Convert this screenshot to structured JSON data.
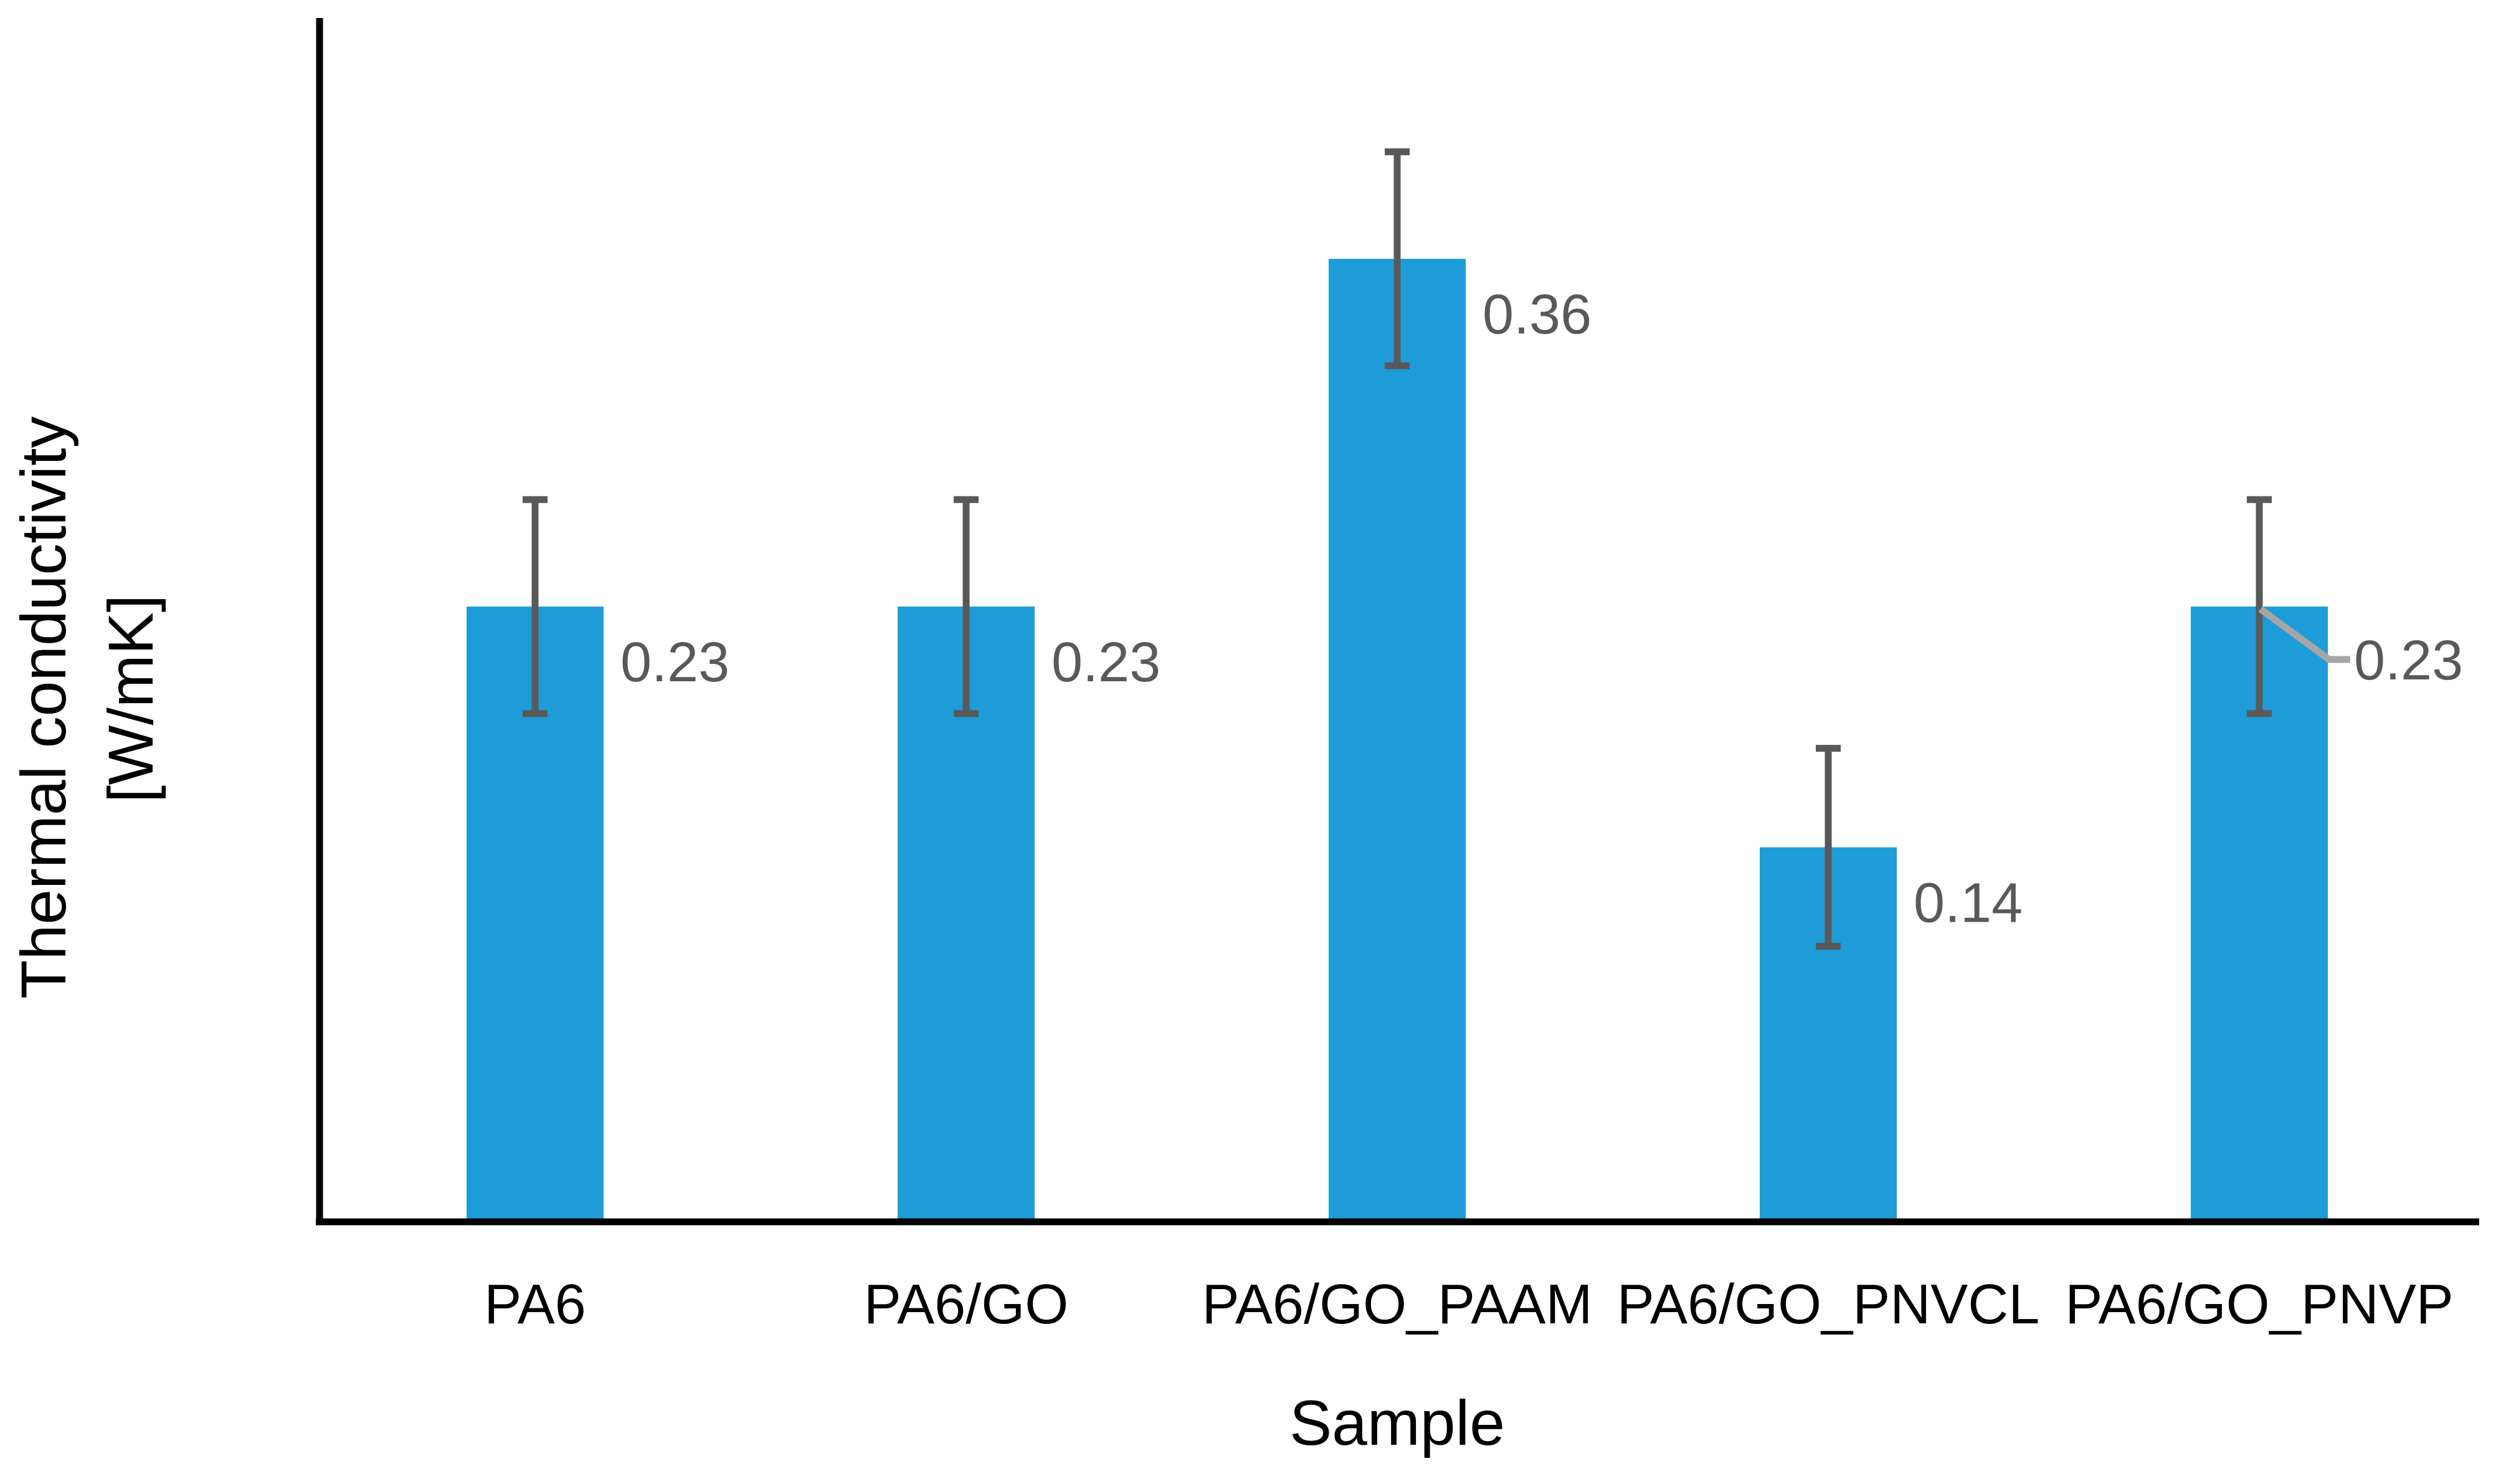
{
  "chart_data": {
    "type": "bar",
    "title": "",
    "xlabel": "Sample",
    "ylabel": "Thermal conductivity [W/mK]",
    "ylabel_lines": [
      "Thermal conductivity",
      "[W/mK]"
    ],
    "categories": [
      "PA6",
      "PA6/GO",
      "PA6/GO_PAAM",
      "PA6/GO_PNVCL",
      "PA6/GO_PNVP"
    ],
    "values": [
      0.23,
      0.23,
      0.36,
      0.14,
      0.23
    ],
    "errors": [
      0.04,
      0.04,
      0.04,
      0.037,
      0.04
    ],
    "data_labels": [
      "0.23",
      "0.23",
      "0.36",
      "0.14",
      "0.23"
    ],
    "ylim": [
      0,
      0.45
    ],
    "grid": false,
    "legend_position": "none",
    "leader_line_index": 4,
    "colors": {
      "bar": "#1E9CD8",
      "error_bar": "#595959",
      "data_label": "#595959",
      "category_label": "#000000",
      "axis": "#000000",
      "axis_title": "#000000",
      "leader_line": "#A6A6A6",
      "background": "#FFFFFF"
    }
  }
}
